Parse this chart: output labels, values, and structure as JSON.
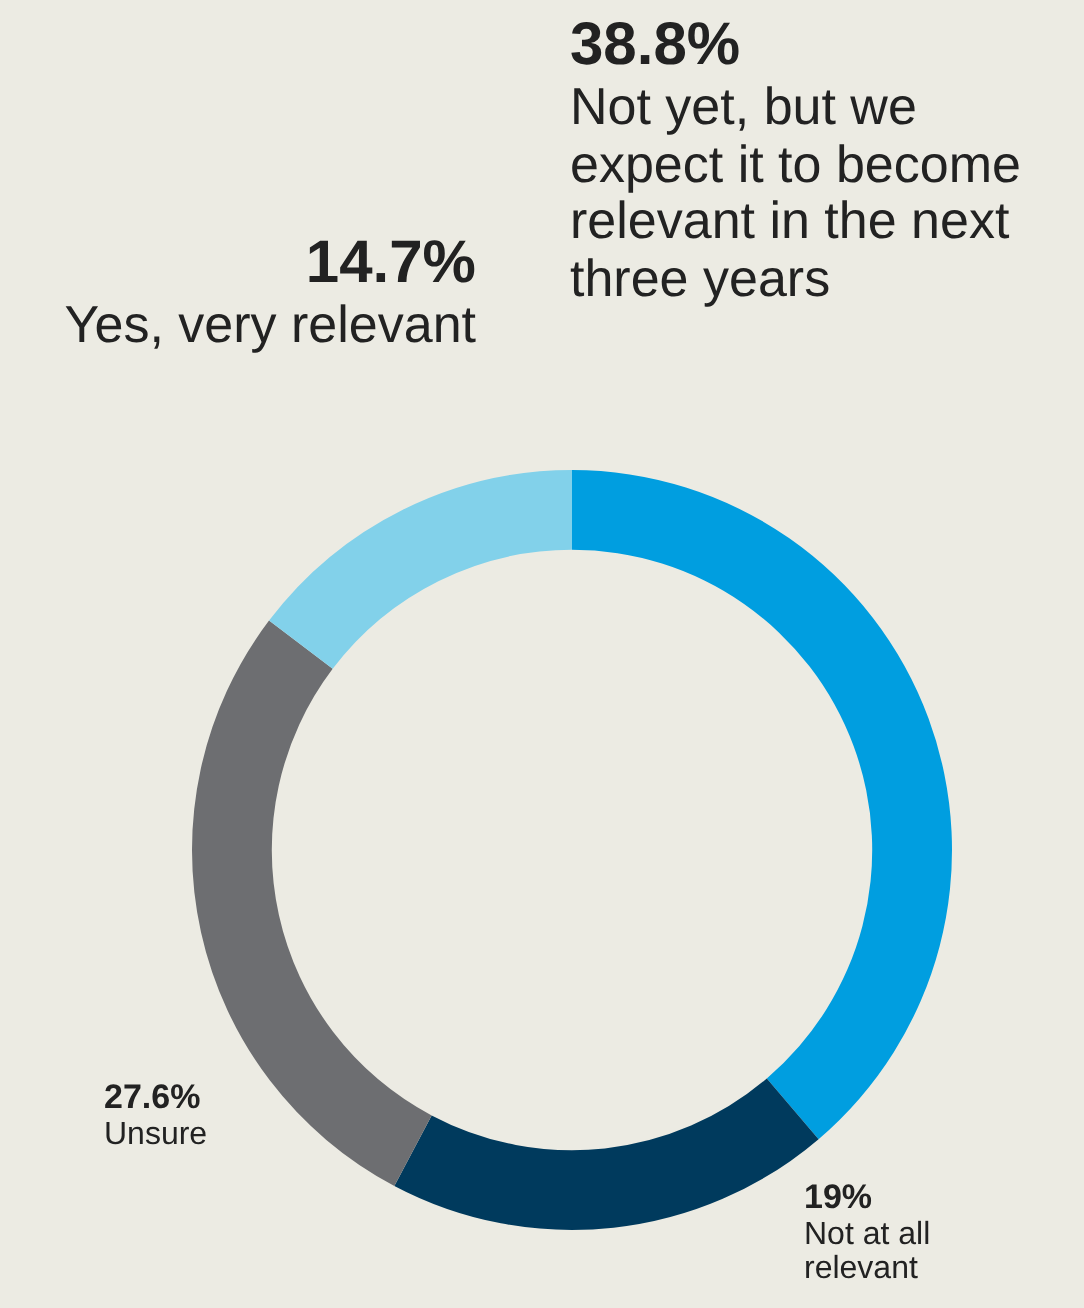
{
  "chart_data": {
    "type": "donut",
    "categories": [
      "Not yet, but we expect it to become relevant in the next three years",
      "Not at all relevant",
      "Unsure",
      "Yes, very relevant"
    ],
    "values": [
      38.8,
      19,
      27.6,
      14.7
    ],
    "value_labels": [
      "38.8%",
      "19%",
      "27.6%",
      "14.7%"
    ],
    "colors": [
      "#009ee0",
      "#003a5d",
      "#6d6e71",
      "#82d1ea"
    ],
    "legend": false
  }
}
